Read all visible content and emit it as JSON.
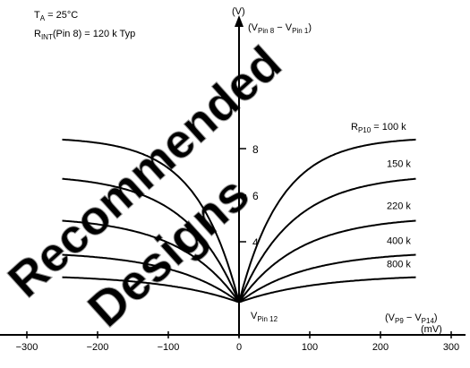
{
  "chart_data": {
    "type": "line",
    "xlim": [
      -320,
      320
    ],
    "ylim": [
      0,
      10.5
    ],
    "x_ticks": [
      -300,
      -200,
      -100,
      0,
      100,
      200,
      300
    ],
    "x_tick_labels": [
      "−300",
      "−200",
      "−100",
      "0",
      "100",
      "200",
      "300"
    ],
    "y_ticks": [
      4,
      6,
      8
    ],
    "y_tick_labels": [
      "4",
      "6",
      "8"
    ],
    "y_unit": "(V)",
    "ylabel": {
      "main": "(V",
      "s1": "Pin 8",
      "mid": " − V",
      "s2": "Pin 1",
      "end": ")"
    },
    "xlabel": {
      "main": "(V",
      "s1": "P9",
      "mid": " − V",
      "s2": "P14",
      "end": ")",
      "unit": "(mV)"
    },
    "vertex_label": {
      "main": "V",
      "sub": "Pin 12"
    },
    "conditions": {
      "line1": {
        "main": "T",
        "sub": "A",
        "rest": " = 25°C"
      },
      "line2": {
        "main": "R",
        "sub": "INT",
        "rest": "(Pin 8) = 120 k Typ"
      }
    },
    "curve_label_prefix": {
      "main": "R",
      "sub": "P10",
      "rest": " = "
    },
    "vertex": {
      "x": 0,
      "y": 1.4
    },
    "grid": false,
    "series": [
      {
        "name": "100 k",
        "plateau": 8.5,
        "knee": 60
      },
      {
        "name": "150 k",
        "plateau": 6.9,
        "knee": 75
      },
      {
        "name": "220 k",
        "plateau": 5.1,
        "knee": 85
      },
      {
        "name": "400 k",
        "plateau": 3.6,
        "knee": 95
      },
      {
        "name": "800 k",
        "plateau": 2.6,
        "knee": 110
      }
    ],
    "watermark": [
      "Recommended",
      "Designs"
    ]
  }
}
